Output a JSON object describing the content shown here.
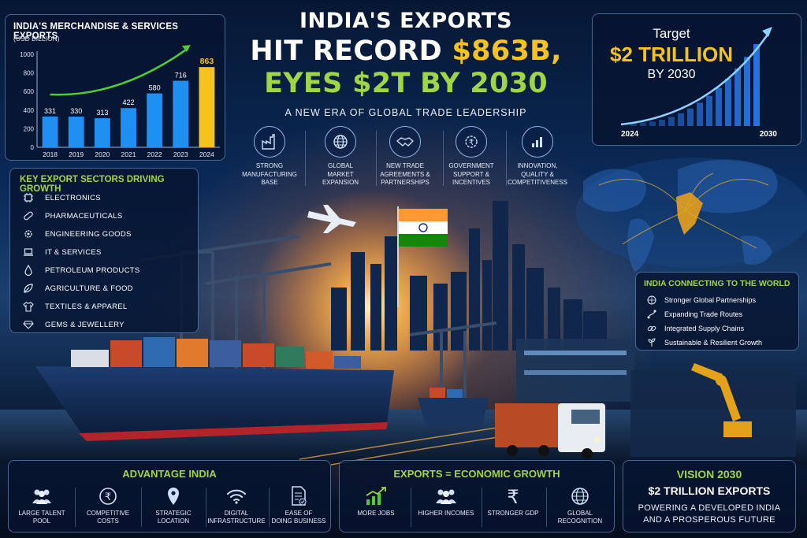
{
  "title": {
    "line1": "INDIA'S EXPORTS",
    "line2_prefix": "HIT RECORD ",
    "line2_amount": "$863B,",
    "line3": "EYES $2T BY 2030",
    "subtitle": "A NEW ERA OF GLOBAL TRADE LEADERSHIP"
  },
  "chart_data": {
    "type": "bar",
    "title": "INDIA'S MERCHANDISE & SERVICES EXPORTS",
    "ylabel": "(USD BILLION)",
    "categories": [
      "2018",
      "2019",
      "2020",
      "2021",
      "2022",
      "2023",
      "2024"
    ],
    "values": [
      331,
      330,
      313,
      422,
      580,
      716,
      863
    ],
    "ylim": [
      0,
      1000
    ],
    "yticks": [
      "0",
      "200",
      "400",
      "600",
      "800",
      "1000"
    ],
    "grid": false,
    "bar_color": "#1f8ff0",
    "highlight_color": "#f6c21c",
    "trend_arrow_color": "#4fcf2f"
  },
  "target": {
    "line1": "Target",
    "line2": "$2 TRILLION",
    "line3": "BY 2030",
    "year_start": "2024",
    "year_end": "2030"
  },
  "pillars": [
    {
      "icon": "factory-icon",
      "label_l1": "STRONG",
      "label_l2": "MANUFACTURING",
      "label_l3": "BASE"
    },
    {
      "icon": "globe-icon",
      "label_l1": "GLOBAL",
      "label_l2": "MARKET",
      "label_l3": "EXPANSION"
    },
    {
      "icon": "handshake-icon",
      "label_l1": "NEW TRADE",
      "label_l2": "AGREEMENTS &",
      "label_l3": "PARTNERSHIPS"
    },
    {
      "icon": "rupee-gear-icon",
      "label_l1": "GOVERNMENT",
      "label_l2": "SUPPORT &",
      "label_l3": "INCENTIVES"
    },
    {
      "icon": "bar-chart-icon",
      "label_l1": "INNOVATION,",
      "label_l2": "QUALITY &",
      "label_l3": "COMPETITIVENESS"
    }
  ],
  "sectors": {
    "title": "KEY EXPORT SECTORS DRIVING GROWTH",
    "items": [
      {
        "icon": "chip-icon",
        "label": "ELECTRONICS"
      },
      {
        "icon": "pill-icon",
        "label": "PHARMACEUTICALS"
      },
      {
        "icon": "gear-icon",
        "label": "ENGINEERING GOODS"
      },
      {
        "icon": "laptop-icon",
        "label": "IT & SERVICES"
      },
      {
        "icon": "oil-drop-icon",
        "label": "PETROLEUM PRODUCTS"
      },
      {
        "icon": "leaf-icon",
        "label": "AGRICULTURE & FOOD"
      },
      {
        "icon": "shirt-icon",
        "label": "TEXTILES & APPAREL"
      },
      {
        "icon": "gem-icon",
        "label": "GEMS & JEWELLERY"
      }
    ]
  },
  "connecting": {
    "title": "INDIA CONNECTING TO THE WORLD",
    "items": [
      {
        "icon": "globe-icon",
        "label": "Stronger Global Partnerships"
      },
      {
        "icon": "route-icon",
        "label": "Expanding Trade Routes"
      },
      {
        "icon": "link-icon",
        "label": "Integrated Supply Chains"
      },
      {
        "icon": "sprout-icon",
        "label": "Sustainable & Resilient Growth"
      }
    ]
  },
  "advantage": {
    "title": "ADVANTAGE INDIA",
    "items": [
      {
        "icon": "people-icon",
        "l1": "LARGE TALENT",
        "l2": "POOL"
      },
      {
        "icon": "rupee-coin-icon",
        "l1": "COMPETITIVE",
        "l2": "COSTS"
      },
      {
        "icon": "location-pin-icon",
        "l1": "STRATEGIC",
        "l2": "LOCATION"
      },
      {
        "icon": "wifi-icon",
        "l1": "DIGITAL",
        "l2": "INFRASTRUCTURE"
      },
      {
        "icon": "document-check-icon",
        "l1": "EASE OF",
        "l2": "DOING BUSINESS"
      }
    ]
  },
  "economic": {
    "title": "EXPORTS = ECONOMIC GROWTH",
    "items": [
      {
        "icon": "growth-chart-icon",
        "l1": "MORE JOBS",
        "l2": ""
      },
      {
        "icon": "people-icon",
        "l1": "HIGHER INCOMES",
        "l2": ""
      },
      {
        "icon": "rupee-icon",
        "l1": "STRONGER GDP",
        "l2": ""
      },
      {
        "icon": "globe-icon",
        "l1": "GLOBAL",
        "l2": "RECOGNITION"
      }
    ]
  },
  "vision": {
    "title": "VISION 2030",
    "line1": "$2 TRILLION EXPORTS",
    "line2": "POWERING A DEVELOPED INDIA",
    "line3": "AND A PROSPEROUS FUTURE"
  },
  "colors": {
    "accent_green": "#9fd643",
    "accent_gold": "#f6c21c",
    "panel_border": "#78aae6"
  }
}
